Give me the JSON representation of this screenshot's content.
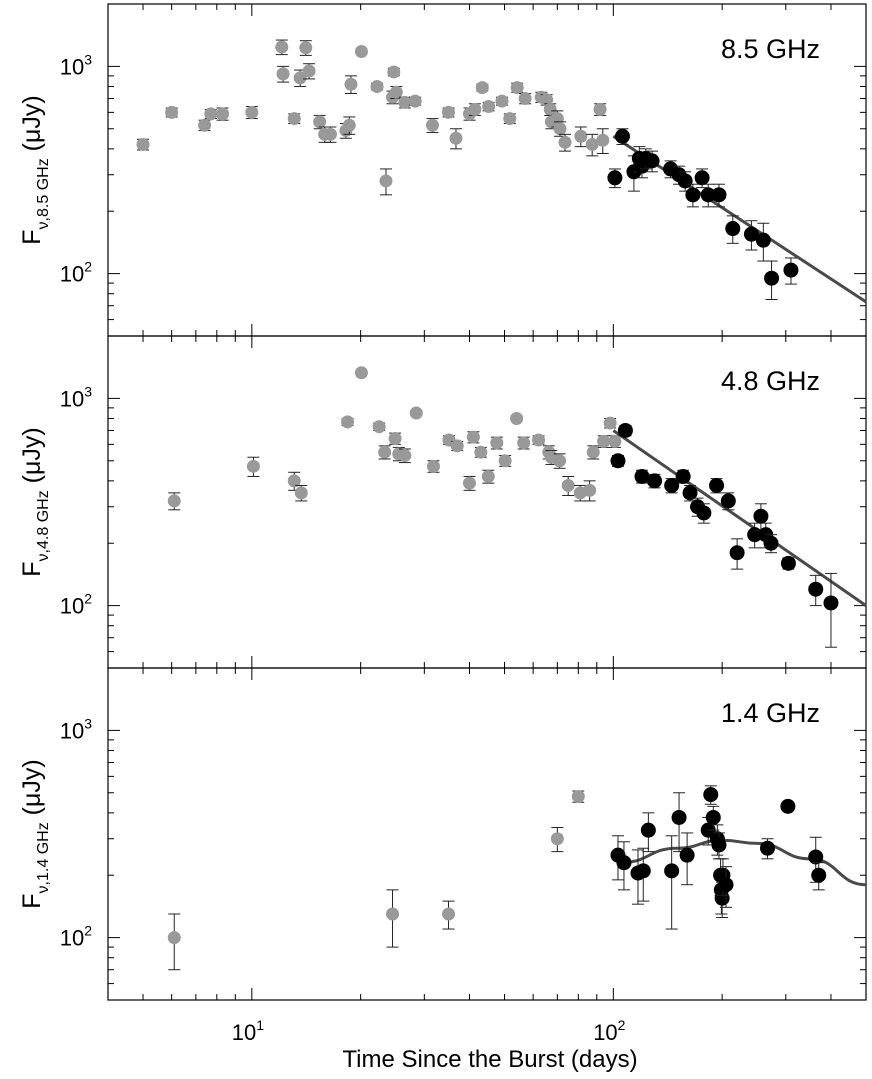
{
  "xlabel": "Time Since the Burst  (days)",
  "x_axis": {
    "scale": "log",
    "range": [
      4.0,
      500.0
    ],
    "major_ticks": [
      10,
      100
    ],
    "major_tick_labels": [
      {
        "base": "10",
        "exp": "1"
      },
      {
        "base": "10",
        "exp": "2"
      }
    ]
  },
  "y_axis": {
    "scale": "log",
    "range": [
      50.0,
      2000.0
    ],
    "major_ticks": [
      100,
      1000
    ],
    "major_tick_labels": [
      {
        "base": "10",
        "exp": "2"
      },
      {
        "base": "10",
        "exp": "3"
      }
    ]
  },
  "colors": {
    "early": "#999999",
    "late": "#000000",
    "fit": "#4a4a4a"
  },
  "chart_data": [
    {
      "type": "scatter",
      "title": "8.5 GHz",
      "ylabel": {
        "main": "F",
        "sub": "ν,8.5 GHz",
        "unit": "(μJy)"
      },
      "series": [
        {
          "name": "early",
          "points": [
            [
              5,
              420,
              25
            ],
            [
              6,
              600,
              30
            ],
            [
              7.4,
              520,
              30
            ],
            [
              7.7,
              590,
              30
            ],
            [
              8.3,
              590,
              40
            ],
            [
              10,
              600,
              40
            ],
            [
              12.1,
              1240,
              100
            ],
            [
              12.2,
              920,
              80
            ],
            [
              13.1,
              560,
              30
            ],
            [
              13.6,
              880,
              80
            ],
            [
              14.1,
              1230,
              100
            ],
            [
              14.4,
              950,
              80
            ],
            [
              15.4,
              540,
              40
            ],
            [
              15.9,
              470,
              40
            ],
            [
              16.5,
              470,
              40
            ],
            [
              18.2,
              490,
              40
            ],
            [
              18.6,
              520,
              50
            ],
            [
              18.8,
              820,
              80
            ],
            [
              20.1,
              1180,
              30
            ],
            [
              22.2,
              800,
              30
            ],
            [
              23.5,
              280,
              40
            ],
            [
              24.5,
              710,
              50
            ],
            [
              24.7,
              940,
              40
            ],
            [
              25.1,
              750,
              50
            ],
            [
              26.5,
              670,
              40
            ],
            [
              28.3,
              680,
              30
            ],
            [
              31.6,
              520,
              40
            ],
            [
              35,
              600,
              30
            ],
            [
              36.7,
              450,
              50
            ],
            [
              40,
              590,
              40
            ],
            [
              41.4,
              620,
              40
            ],
            [
              43.4,
              790,
              30
            ],
            [
              45.2,
              640,
              30
            ],
            [
              49.2,
              680,
              30
            ],
            [
              51.7,
              560,
              30
            ],
            [
              54.2,
              790,
              40
            ],
            [
              57,
              700,
              40
            ],
            [
              63.2,
              710,
              40
            ],
            [
              65.4,
              690,
              40
            ],
            [
              66.9,
              620,
              40
            ],
            [
              67.4,
              540,
              40
            ],
            [
              70,
              560,
              50
            ],
            [
              71.2,
              500,
              40
            ],
            [
              73.5,
              430,
              40
            ],
            [
              81.3,
              460,
              50
            ],
            [
              87.4,
              420,
              50
            ],
            [
              91.9,
              620,
              40
            ],
            [
              93.5,
              440,
              60
            ]
          ]
        },
        {
          "name": "late",
          "points": [
            [
              101,
              290,
              30
            ],
            [
              106,
              460,
              40
            ],
            [
              114,
              310,
              60
            ],
            [
              118,
              360,
              50
            ],
            [
              120,
              330,
              40
            ],
            [
              123,
              360,
              40
            ],
            [
              128,
              350,
              40
            ],
            [
              144,
              320,
              30
            ],
            [
              152,
              300,
              30
            ],
            [
              158,
              280,
              30
            ],
            [
              166,
              240,
              30
            ],
            [
              176,
              290,
              30
            ],
            [
              183,
              240,
              30
            ],
            [
              196,
              240,
              30
            ],
            [
              214,
              165,
              25
            ],
            [
              241,
              155,
              25
            ],
            [
              260,
              145,
              30
            ],
            [
              274,
              95,
              20
            ],
            [
              310,
              104,
              15
            ]
          ]
        }
      ],
      "fit": {
        "type": "power_law",
        "points": [
          [
            100,
            460
          ],
          [
            500,
            73
          ]
        ]
      }
    },
    {
      "type": "scatter",
      "title": "4.8 GHz",
      "ylabel": {
        "main": "F",
        "sub": "ν,4.8 GHz",
        "unit": "(μJy)"
      },
      "series": [
        {
          "name": "early",
          "points": [
            [
              6.1,
              320,
              30
            ],
            [
              10.1,
              470,
              50
            ],
            [
              13.1,
              400,
              40
            ],
            [
              13.7,
              350,
              30
            ],
            [
              18.4,
              770,
              30
            ],
            [
              20.1,
              1330,
              20
            ],
            [
              22.5,
              730,
              30
            ],
            [
              23.3,
              550,
              40
            ],
            [
              24.9,
              640,
              40
            ],
            [
              25.5,
              540,
              40
            ],
            [
              26.5,
              530,
              40
            ],
            [
              28.5,
              850,
              20
            ],
            [
              31.8,
              470,
              30
            ],
            [
              35.1,
              630,
              30
            ],
            [
              37,
              590,
              30
            ],
            [
              40,
              390,
              30
            ],
            [
              41,
              650,
              40
            ],
            [
              43,
              550,
              30
            ],
            [
              45.1,
              420,
              30
            ],
            [
              47.6,
              610,
              40
            ],
            [
              50.2,
              500,
              30
            ],
            [
              54,
              800,
              20
            ],
            [
              56.5,
              610,
              40
            ],
            [
              62.1,
              630,
              30
            ],
            [
              66.3,
              550,
              40
            ],
            [
              67.4,
              520,
              40
            ],
            [
              71,
              500,
              40
            ],
            [
              75,
              380,
              40
            ],
            [
              81,
              350,
              30
            ],
            [
              86,
              360,
              40
            ],
            [
              88,
              550,
              40
            ],
            [
              94,
              620,
              40
            ],
            [
              98,
              760,
              40
            ],
            [
              101,
              620,
              40
            ]
          ]
        },
        {
          "name": "late",
          "points": [
            [
              103,
              500,
              30
            ],
            [
              108,
              700,
              40
            ],
            [
              120,
              420,
              30
            ],
            [
              130,
              400,
              30
            ],
            [
              145,
              380,
              30
            ],
            [
              156,
              420,
              30
            ],
            [
              163,
              350,
              30
            ],
            [
              171,
              300,
              30
            ],
            [
              178,
              280,
              30
            ],
            [
              193,
              380,
              30
            ],
            [
              208,
              320,
              30
            ],
            [
              220,
              180,
              30
            ],
            [
              246,
              220,
              30
            ],
            [
              256,
              270,
              40
            ],
            [
              264,
              220,
              30
            ],
            [
              273,
              200,
              20
            ],
            [
              305,
              160,
              10
            ],
            [
              363,
              120,
              20
            ],
            [
              400,
              103,
              40
            ]
          ]
        }
      ],
      "fit": {
        "type": "power_law",
        "points": [
          [
            100,
            700
          ],
          [
            500,
            100
          ]
        ]
      }
    },
    {
      "type": "scatter",
      "title": "1.4 GHz",
      "ylabel": {
        "main": "F",
        "sub": "ν,1.4 GHz",
        "unit": "(μJy)"
      },
      "series": [
        {
          "name": "early",
          "points": [
            [
              6.1,
              100,
              30
            ],
            [
              24.5,
              130,
              40
            ],
            [
              35,
              130,
              20
            ],
            [
              70,
              300,
              40
            ],
            [
              80,
              480,
              30
            ]
          ]
        },
        {
          "name": "late",
          "points": [
            [
              103,
              250,
              60
            ],
            [
              107,
              230,
              60
            ],
            [
              117,
              205,
              60
            ],
            [
              121,
              210,
              60
            ],
            [
              125,
              330,
              70
            ],
            [
              145,
              210,
              100
            ],
            [
              152,
              380,
              120
            ],
            [
              160,
              250,
              70
            ],
            [
              183,
              330,
              50
            ],
            [
              186,
              490,
              50
            ],
            [
              189,
              380,
              50
            ],
            [
              194,
              300,
              50
            ],
            [
              196,
              280,
              40
            ],
            [
              198,
              200,
              40
            ],
            [
              199,
              170,
              40
            ],
            [
              200,
              155,
              30
            ],
            [
              201,
              200,
              40
            ],
            [
              205,
              180,
              40
            ],
            [
              267,
              270,
              30
            ],
            [
              304,
              430,
              20
            ],
            [
              363,
              245,
              60
            ],
            [
              370,
              200,
              30
            ]
          ]
        }
      ],
      "fit": {
        "type": "curve",
        "points": [
          [
            105,
            230
          ],
          [
            150,
            270
          ],
          [
            200,
            295
          ],
          [
            250,
            285
          ],
          [
            350,
            240
          ],
          [
            500,
            180
          ]
        ]
      }
    }
  ]
}
